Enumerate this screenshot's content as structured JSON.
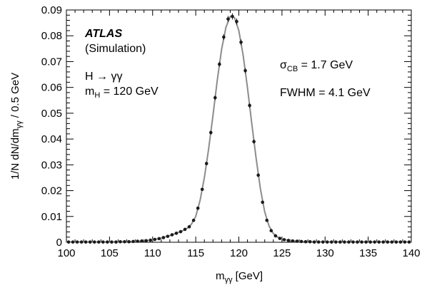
{
  "chart_data": {
    "type": "scatter",
    "xlabel": "m",
    "xlabel_sub": "γγ",
    "xlabel_unit": " [GeV]",
    "ylabel": "1/N dN/dm",
    "ylabel_sub": "γγ",
    "ylabel_unit": " / 0.5 GeV",
    "xlim": [
      100,
      140
    ],
    "ylim": [
      0,
      0.09
    ],
    "xticks": [
      100,
      105,
      110,
      115,
      120,
      125,
      130,
      135,
      140
    ],
    "yticks": [
      0,
      0.01,
      0.02,
      0.03,
      0.04,
      0.05,
      0.06,
      0.07,
      0.08,
      0.09
    ],
    "grid": false,
    "colors": {
      "points": "#1a1a1a",
      "fit": "#8c8c8c"
    },
    "annotations": {
      "experiment": "ATLAS",
      "status": "(Simulation)",
      "process_prefix": "H → γγ",
      "mass_symbol": "m",
      "mass_sub": "H",
      "mass_value": " = 120 GeV",
      "sigma_symbol": "σ",
      "sigma_sub": "CB",
      "sigma_value": " = 1.7 GeV",
      "fwhm": "FWHM = 4.1 GeV"
    },
    "series": [
      {
        "kind": "points",
        "x": [
          100.25,
          100.75,
          101.25,
          101.75,
          102.25,
          102.75,
          103.25,
          103.75,
          104.25,
          104.75,
          105.25,
          105.75,
          106.25,
          106.75,
          107.25,
          107.75,
          108.25,
          108.75,
          109.25,
          109.75,
          110.25,
          110.75,
          111.25,
          111.75,
          112.25,
          112.75,
          113.25,
          113.75,
          114.25,
          114.75,
          115.25,
          115.75,
          116.25,
          116.75,
          117.25,
          117.75,
          118.25,
          118.75,
          119.25,
          119.75,
          120.25,
          120.75,
          121.25,
          121.75,
          122.25,
          122.75,
          123.25,
          123.75,
          124.25,
          124.75,
          125.25,
          125.75,
          126.25,
          126.75,
          127.25,
          127.75,
          128.25,
          128.75,
          129.25,
          129.75,
          130.25,
          130.75,
          131.25,
          131.75,
          132.25,
          132.75,
          133.25,
          133.75,
          134.25,
          134.75,
          135.25,
          135.75,
          136.25,
          136.75,
          137.25,
          137.75,
          138.25,
          138.75,
          139.25,
          139.75
        ],
        "y": [
          0.0001,
          0.0001,
          0.0001,
          0.0001,
          0.0001,
          0.0001,
          0.0001,
          0.0001,
          0.0001,
          0.0001,
          0.0001,
          0.0001,
          0.0002,
          0.0002,
          0.0002,
          0.0003,
          0.0004,
          0.0005,
          0.0006,
          0.0008,
          0.0011,
          0.0014,
          0.0018,
          0.0023,
          0.0029,
          0.0035,
          0.0041,
          0.005,
          0.006,
          0.0085,
          0.0132,
          0.0205,
          0.0305,
          0.0425,
          0.056,
          0.069,
          0.0795,
          0.0865,
          0.0875,
          0.0855,
          0.0775,
          0.0665,
          0.053,
          0.039,
          0.026,
          0.0155,
          0.0085,
          0.0045,
          0.0025,
          0.0015,
          0.001,
          0.0007,
          0.0005,
          0.0004,
          0.0003,
          0.0002,
          0.0002,
          0.0001,
          0.0001,
          0.0001,
          0.0001,
          0.0001,
          0.0001,
          0.0001,
          0.0001,
          0.0001,
          0.0001,
          0.0001,
          0.0001,
          0.0001,
          0.0001,
          0.0001,
          0.0001,
          0.0001,
          0.0001,
          0.0001,
          0.0001,
          0.0001,
          0.0001,
          0.0001
        ],
        "err": [
          0.0001,
          0.0001,
          0.0001,
          0.0001,
          0.0001,
          0.0001,
          0.0001,
          0.0001,
          0.0001,
          0.0001,
          0.0001,
          0.0001,
          0.0001,
          0.0001,
          0.0001,
          0.0001,
          0.0001,
          0.0001,
          0.0001,
          0.0001,
          0.0001,
          0.0002,
          0.0002,
          0.0002,
          0.0002,
          0.0002,
          0.0003,
          0.0003,
          0.0003,
          0.0004,
          0.0005,
          0.0006,
          0.0007,
          0.0008,
          0.0009,
          0.001,
          0.0011,
          0.0012,
          0.0012,
          0.0012,
          0.0011,
          0.001,
          0.0009,
          0.0008,
          0.0007,
          0.0005,
          0.0004,
          0.0003,
          0.0002,
          0.0002,
          0.0002,
          0.0001,
          0.0001,
          0.0001,
          0.0001,
          0.0001,
          0.0001,
          0.0001,
          0.0001,
          0.0001,
          0.0001,
          0.0001,
          0.0001,
          0.0001,
          0.0001,
          0.0001,
          0.0001,
          0.0001,
          0.0001,
          0.0001,
          0.0001,
          0.0001,
          0.0001,
          0.0001,
          0.0001,
          0.0001,
          0.0001,
          0.0001,
          0.0001,
          0.0001
        ]
      },
      {
        "kind": "fit",
        "x": [
          100,
          105,
          108,
          110,
          111,
          112,
          113,
          113.5,
          114,
          114.5,
          115,
          115.5,
          116,
          116.5,
          117,
          117.5,
          118,
          118.5,
          119,
          119.5,
          120,
          120.5,
          121,
          121.5,
          122,
          122.5,
          123,
          123.5,
          124,
          124.5,
          125,
          126,
          127,
          130,
          135,
          140
        ],
        "y": [
          0.0001,
          0.0001,
          0.0003,
          0.0009,
          0.0016,
          0.0026,
          0.0038,
          0.0045,
          0.0054,
          0.007,
          0.01,
          0.0162,
          0.025,
          0.0362,
          0.0492,
          0.0628,
          0.0748,
          0.0833,
          0.0875,
          0.087,
          0.082,
          0.0725,
          0.0598,
          0.046,
          0.0325,
          0.0207,
          0.0118,
          0.0063,
          0.0034,
          0.002,
          0.0012,
          0.0006,
          0.0003,
          0.0001,
          0.0001,
          0.0001
        ]
      }
    ]
  }
}
